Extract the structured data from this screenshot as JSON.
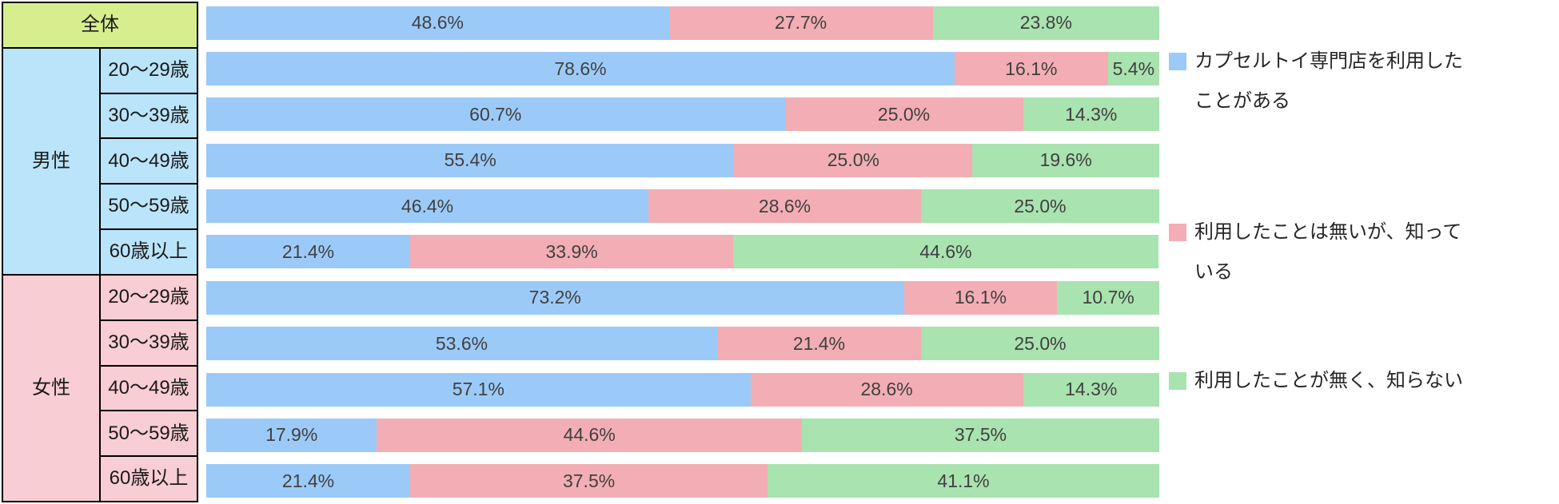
{
  "colors": {
    "bar_blue": "#9CCAF8",
    "bar_pink": "#F2AEB4",
    "bar_green": "#A9E3AF",
    "header_green": "#D7EE8E",
    "male_bg": "#BAE4FA",
    "female_bg": "#F8CDD3",
    "border": "#000000",
    "label_text": "#404040"
  },
  "table": {
    "overall_label": "全体",
    "groups": [
      {
        "key": "male",
        "label": "男性",
        "ages": [
          "20〜29歳",
          "30〜39歳",
          "40〜49歳",
          "50〜59歳",
          "60歳以上"
        ]
      },
      {
        "key": "female",
        "label": "女性",
        "ages": [
          "20〜29歳",
          "30〜39歳",
          "40〜49歳",
          "50〜59歳",
          "60歳以上"
        ]
      }
    ]
  },
  "legend": {
    "items": [
      {
        "key": "used",
        "color": "#9CCAF8",
        "label": "カプセルトイ専門店を利用したことがある",
        "lines": [
          "カプセルトイ専門店を利用した",
          "ことがある"
        ]
      },
      {
        "key": "known-not-used",
        "color": "#F2AEB4",
        "label": "利用したことは無いが、知っている",
        "lines": [
          "利用したことは無いが、知って",
          "いる"
        ]
      },
      {
        "key": "unknown",
        "color": "#A9E3AF",
        "label": "利用したことが無く、知らない",
        "lines": [
          "利用したことが無く、知らない"
        ]
      }
    ]
  },
  "chart_data": {
    "type": "bar",
    "stacked": true,
    "orientation": "horizontal",
    "value_unit": "%",
    "xlim": [
      0,
      100
    ],
    "value_format": "0.0%",
    "categories": [
      "全体",
      "男性 20〜29歳",
      "男性 30〜39歳",
      "男性 40〜49歳",
      "男性 50〜59歳",
      "男性 60歳以上",
      "女性 20〜29歳",
      "女性 30〜39歳",
      "女性 40〜49歳",
      "女性 50〜59歳",
      "女性 60歳以上"
    ],
    "series": [
      {
        "key": "used",
        "name": "カプセルトイ専門店を利用したことがある",
        "color": "#9CCAF8",
        "values": [
          48.6,
          78.6,
          60.7,
          55.4,
          46.4,
          21.4,
          73.2,
          53.6,
          57.1,
          17.9,
          21.4
        ]
      },
      {
        "key": "known-not-used",
        "name": "利用したことは無いが、知っている",
        "color": "#F2AEB4",
        "values": [
          27.7,
          16.1,
          25.0,
          25.0,
          28.6,
          33.9,
          16.1,
          21.4,
          28.6,
          44.6,
          37.5
        ]
      },
      {
        "key": "unknown",
        "name": "利用したことが無く、知らない",
        "color": "#A9E3AF",
        "values": [
          23.8,
          5.4,
          14.3,
          19.6,
          25.0,
          44.6,
          10.7,
          25.0,
          14.3,
          37.5,
          41.1
        ]
      }
    ]
  }
}
